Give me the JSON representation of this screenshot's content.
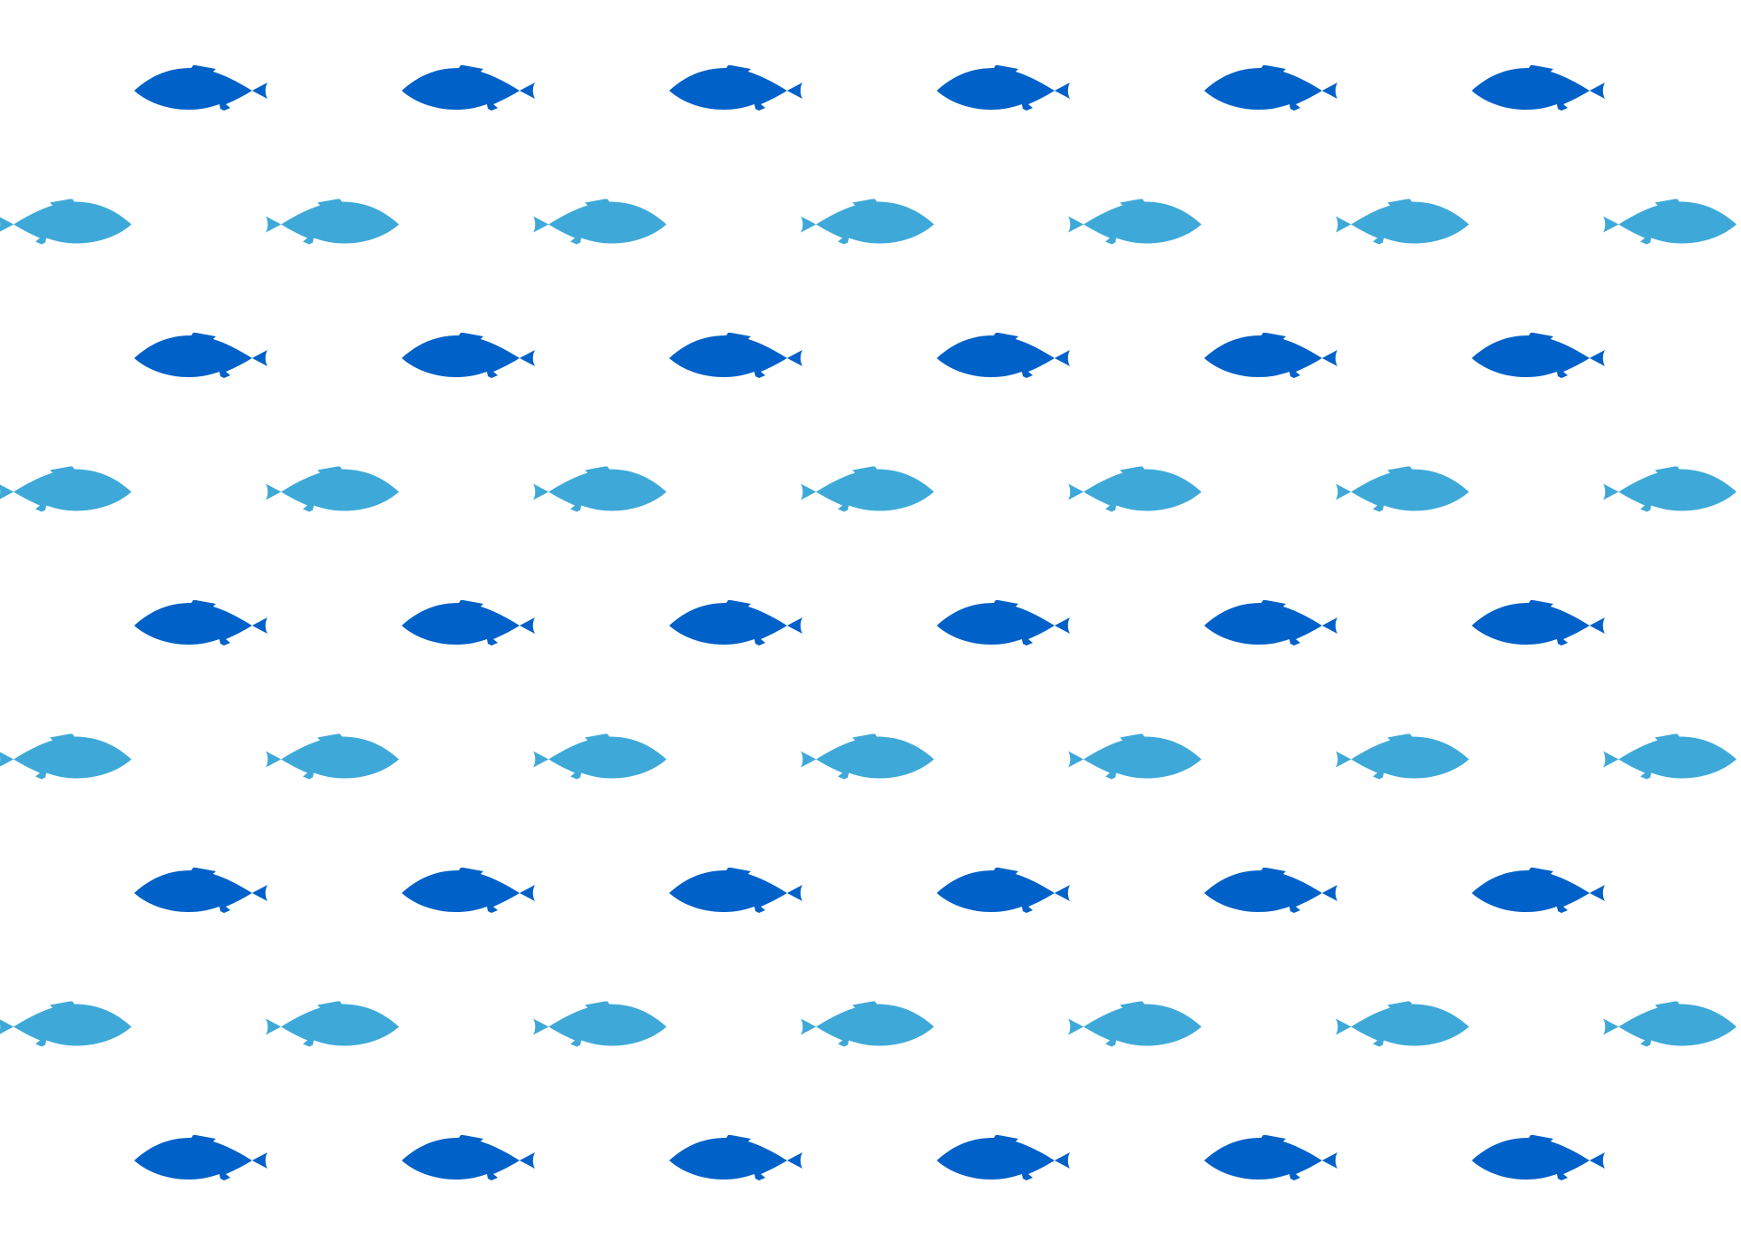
{
  "pattern": {
    "background_color": "#ffffff",
    "fish_colors": {
      "dark": "#0061c8",
      "light": "#3ea9d8"
    },
    "row_styles": [
      "dark",
      "light",
      "dark",
      "light",
      "dark",
      "light",
      "dark",
      "light",
      "dark"
    ],
    "row_facing": [
      "left",
      "right",
      "left",
      "right",
      "left",
      "right",
      "left",
      "right",
      "left"
    ],
    "fish_per_row": [
      6,
      7,
      6,
      7,
      6,
      7,
      6,
      7,
      6
    ],
    "fish_icon": "fish-icon"
  }
}
